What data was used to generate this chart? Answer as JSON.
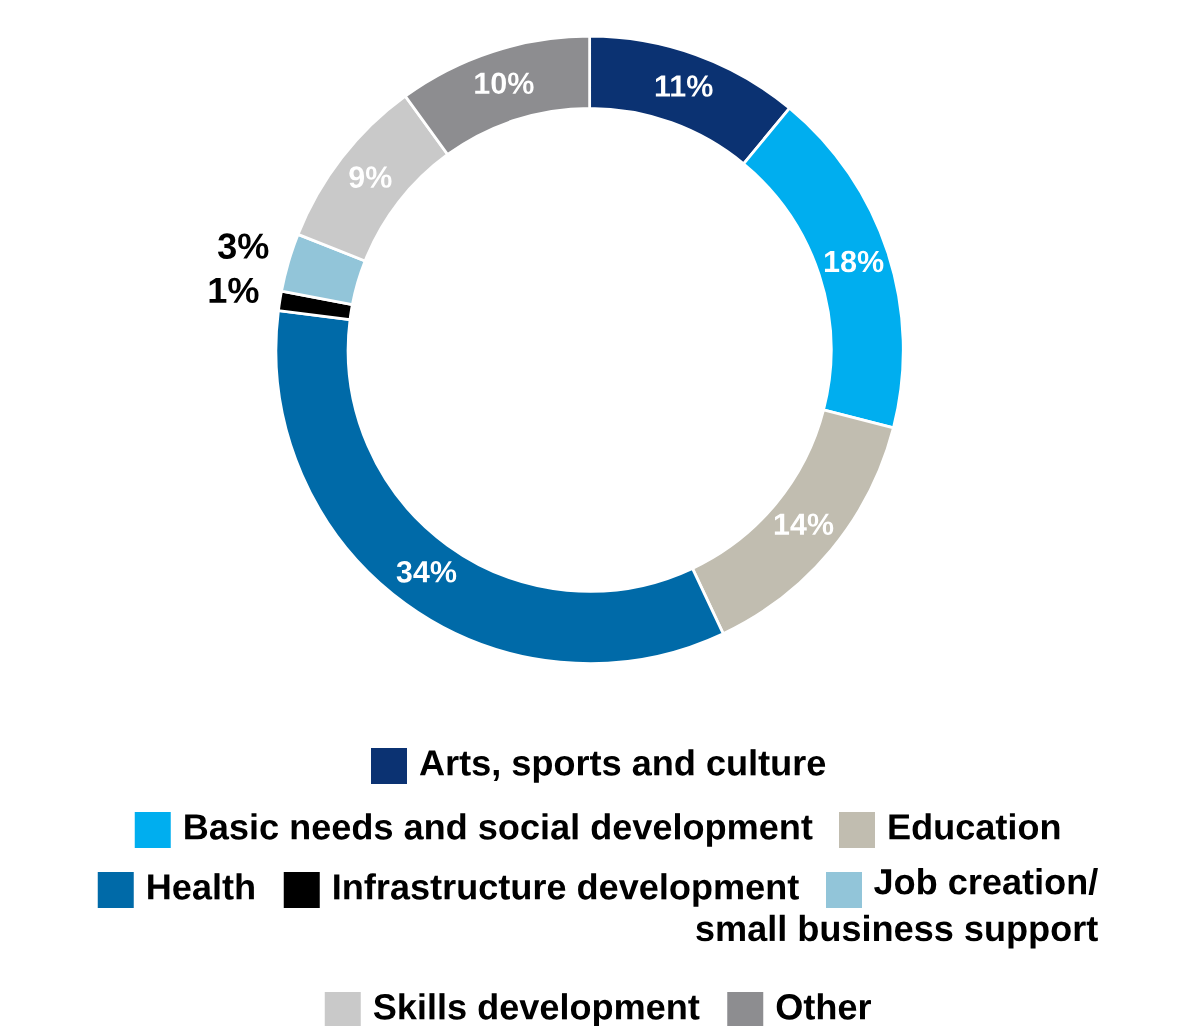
{
  "chart_data": {
    "type": "donut",
    "categories": [
      "Arts, sports and culture",
      "Basic needs and social development",
      "Education",
      "Health",
      "Infrastructure development",
      "Job creation/ small business support",
      "Skills development",
      "Other"
    ],
    "values": [
      11,
      18,
      14,
      34,
      1,
      3,
      9,
      10
    ],
    "value_labels": [
      "11%",
      "18%",
      "14%",
      "34%",
      "1%",
      "3%",
      "9%",
      "10%"
    ],
    "colors": [
      "#0b3272",
      "#00aeef",
      "#c1bdb0",
      "#006aa8",
      "#000000",
      "#92c5d9",
      "#c9c9c9",
      "#8d8d90"
    ],
    "legend": "bottom"
  }
}
